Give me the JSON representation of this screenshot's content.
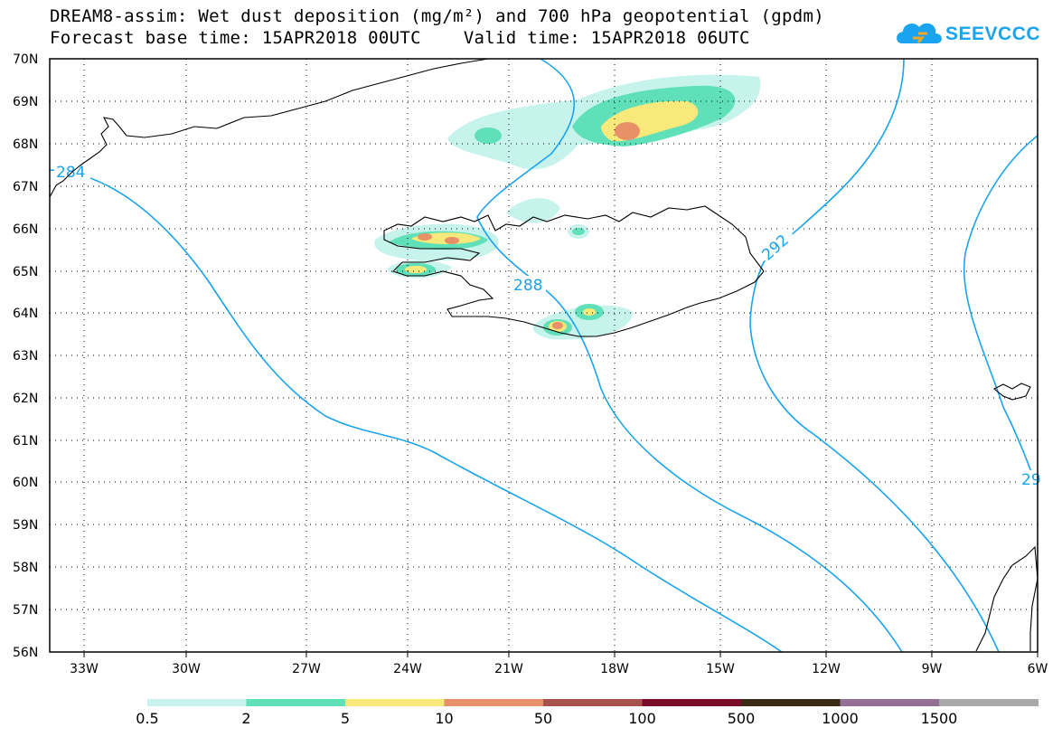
{
  "header": {
    "title_line1": "DREAM8-assim: Wet dust deposition (mg/m²) and 700 hPa geopotential (gpdm)",
    "title_line2": "Forecast base time: 15APR2018 00UTC    Valid time: 15APR2018 06UTC",
    "logo_text": "SEEVCCC",
    "logo_icon": "cloud-logo-icon"
  },
  "map": {
    "lat_labels": [
      "70N",
      "69N",
      "68N",
      "67N",
      "66N",
      "65N",
      "64N",
      "63N",
      "62N",
      "61N",
      "60N",
      "59N",
      "58N",
      "57N",
      "56N"
    ],
    "lon_labels": [
      "33W",
      "30W",
      "27W",
      "24W",
      "21W",
      "18W",
      "15W",
      "12W",
      "9W",
      "6W"
    ],
    "contour_labels": [
      "284",
      "288",
      "292",
      "29"
    ],
    "colors": {
      "contour": "#1aa3ee",
      "coast": "#000000"
    }
  },
  "legend": {
    "labels": [
      "0.5",
      "2",
      "5",
      "10",
      "50",
      "100",
      "500",
      "1000",
      "1500"
    ],
    "colors": [
      "#c6f3ec",
      "#5fe0b8",
      "#f8e97a",
      "#e89068",
      "#a8524e",
      "#7a0b2a",
      "#3b2a16",
      "#947096",
      "#a9a9a9"
    ]
  }
}
